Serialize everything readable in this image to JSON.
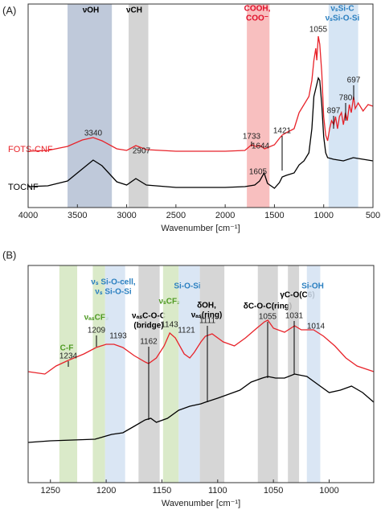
{
  "chart_data": [
    {
      "type": "line",
      "panel": "(A)",
      "xlabel": "Wavenumber [cm⁻¹]",
      "xlim": [
        4000,
        500
      ],
      "xticks": [
        4000,
        3500,
        3000,
        2500,
        2000,
        1500,
        1000,
        500
      ],
      "ylim": [
        0,
        253
      ],
      "series": [
        {
          "name": "FOTS-CNF",
          "color": "#e8232a",
          "x": [
            4000,
            3800,
            3600,
            3450,
            3340,
            3250,
            3100,
            3000,
            2907,
            2800,
            2500,
            2000,
            1800,
            1733,
            1690,
            1644,
            1600,
            1500,
            1450,
            1421,
            1380,
            1300,
            1250,
            1200,
            1150,
            1120,
            1100,
            1080,
            1070,
            1055,
            1040,
            1020,
            1000,
            980,
            960,
            940,
            920,
            897,
            880,
            860,
            840,
            820,
            800,
            780,
            760,
            740,
            720,
            697,
            680,
            650,
            600,
            550,
            500
          ],
          "values": [
            70,
            71,
            76,
            84,
            87,
            83,
            73,
            71,
            77,
            72,
            70,
            70,
            71,
            78,
            76,
            77,
            73,
            78,
            86,
            90,
            93,
            98,
            118,
            128,
            138,
            158,
            183,
            198,
            183,
            213,
            203,
            168,
            113,
            90,
            83,
            98,
            108,
            103,
            113,
            98,
            113,
            118,
            103,
            118,
            108,
            128,
            118,
            138,
            123,
            130,
            120,
            128,
            126
          ]
        },
        {
          "name": "TOCNF",
          "color": "#000000",
          "x": [
            4000,
            3800,
            3600,
            3450,
            3340,
            3250,
            3100,
            3000,
            2907,
            2800,
            2500,
            2000,
            1800,
            1700,
            1650,
            1605,
            1570,
            1500,
            1450,
            1421,
            1380,
            1300,
            1250,
            1200,
            1150,
            1120,
            1100,
            1080,
            1055,
            1040,
            1020,
            1000,
            980,
            960,
            900,
            800,
            700,
            600,
            500
          ],
          "values": [
            26,
            27,
            33,
            48,
            59,
            52,
            32,
            28,
            36,
            28,
            25,
            25,
            26,
            28,
            33,
            43,
            30,
            24,
            31,
            38,
            40,
            43,
            53,
            58,
            68,
            98,
            138,
            148,
            161,
            158,
            128,
            88,
            68,
            62,
            60,
            58,
            62,
            60,
            58
          ]
        }
      ],
      "bands": [
        {
          "x": [
            3600,
            3150
          ],
          "color": "#b4c0d4",
          "label": [
            "νOH"
          ],
          "label_color": "#000000"
        },
        {
          "x": [
            2980,
            2780
          ],
          "color": "#cccccc",
          "label": [
            "νCH"
          ],
          "label_color": "#000000"
        },
        {
          "x": [
            1780,
            1550
          ],
          "color": "#f7b4b4",
          "label": [
            "COOH,",
            "COO⁻"
          ],
          "label_color": "#e0102a"
        },
        {
          "x": [
            950,
            650
          ],
          "color": "#cfe0f2",
          "label": [
            "νₛSi-C",
            "νₛSi-O-Si"
          ],
          "label_color": "#2a7fc0"
        }
      ],
      "annotations": [
        "3340",
        "2907",
        "1733",
        "1644",
        "1421",
        "1605",
        "1055",
        "897",
        "780",
        "697"
      ]
    },
    {
      "type": "line",
      "panel": "(B)",
      "xlabel": "Wavenumber [cm⁻¹]",
      "xlim": [
        1270,
        960
      ],
      "xticks": [
        1250,
        1200,
        1150,
        1100,
        1050,
        1000
      ],
      "ylim": [
        0,
        270
      ],
      "series": [
        {
          "color": "#e8232a",
          "x": [
            1270,
            1255,
            1245,
            1234,
            1220,
            1209,
            1200,
            1193,
            1185,
            1175,
            1165,
            1162,
            1155,
            1148,
            1143,
            1138,
            1130,
            1125,
            1121,
            1115,
            1111,
            1105,
            1095,
            1085,
            1075,
            1065,
            1058,
            1055,
            1050,
            1040,
            1031,
            1025,
            1014,
            1005,
            995,
            985,
            975,
            960
          ],
          "values": [
            138,
            135,
            145,
            152,
            160,
            168,
            172,
            172,
            168,
            158,
            150,
            148,
            155,
            170,
            186,
            180,
            160,
            155,
            162,
            175,
            182,
            185,
            175,
            170,
            180,
            192,
            200,
            202,
            192,
            187,
            195,
            190,
            190,
            182,
            170,
            155,
            145,
            138
          ]
        },
        {
          "color": "#000000",
          "x": [
            1270,
            1250,
            1230,
            1210,
            1195,
            1185,
            1175,
            1165,
            1160,
            1155,
            1145,
            1135,
            1125,
            1115,
            1111,
            1100,
            1090,
            1080,
            1070,
            1060,
            1055,
            1048,
            1040,
            1031,
            1020,
            1010,
            1000,
            990,
            980,
            970,
            960
          ],
          "values": [
            50,
            52,
            53,
            54,
            60,
            62,
            70,
            78,
            80,
            75,
            80,
            90,
            95,
            98,
            100,
            105,
            110,
            115,
            125,
            130,
            132,
            130,
            130,
            135,
            132,
            122,
            112,
            115,
            120,
            112,
            100
          ]
        }
      ],
      "bands": [
        {
          "x": [
            1242,
            1226
          ],
          "color": "#d3e6c0",
          "label": [
            "C-F"
          ],
          "label_color": "#4e9a22"
        },
        {
          "x": [
            1212,
            1201
          ],
          "color": "#d3e6c0",
          "label": [
            "νₐₛCF₂"
          ],
          "label_color": "#4e9a22"
        },
        {
          "x": [
            1201,
            1183
          ],
          "color": "#d3e2f2",
          "label": [
            "νₛ Si-O-cell,",
            "νₛ Si-O-Si"
          ],
          "label_color": "#2a7fc0"
        },
        {
          "x": [
            1171,
            1152
          ],
          "color": "#cfcfcf",
          "label": [
            "νₐₛC-O-C",
            "(bridge)"
          ],
          "label_color": "#000000"
        },
        {
          "x": [
            1149,
            1135
          ],
          "color": "#d3e6c0",
          "label": [
            "νₛCF₂"
          ],
          "label_color": "#4e9a22"
        },
        {
          "x": [
            1135,
            1116
          ],
          "color": "#d3e2f2",
          "label": [
            "Si-O-Si"
          ],
          "label_color": "#2a7fc0"
        },
        {
          "x": [
            1116,
            1094
          ],
          "color": "#cfcfcf",
          "label": [
            "δOH,",
            "νₐₛ(ring)"
          ],
          "label_color": "#000000"
        },
        {
          "x": [
            1064,
            1046
          ],
          "color": "#cfcfcf",
          "label": [
            "δC-O-C(ring)"
          ],
          "label_color": "#000000"
        },
        {
          "x": [
            1037,
            1027
          ],
          "color": "#cfcfcf",
          "label": [
            "γC-O(C6)"
          ],
          "label_color": "#000000"
        },
        {
          "x": [
            1020,
            1008
          ],
          "color": "#d3e2f2",
          "label": [
            "Si-OH"
          ],
          "label_color": "#2a7fc0"
        }
      ],
      "annotations": [
        "1234",
        "1209",
        "1193",
        "1162",
        "1143",
        "1121",
        "1111",
        "1055",
        "1031",
        "1014"
      ]
    }
  ]
}
